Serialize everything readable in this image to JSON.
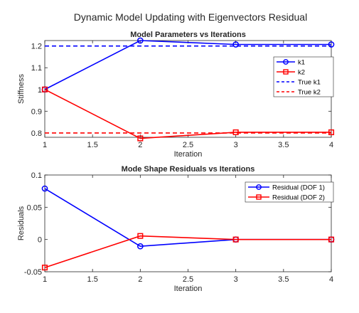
{
  "figure": {
    "suptitle": "Dynamic Model Updating with Eigenvectors Residual"
  },
  "chart_data": [
    {
      "type": "line",
      "title": "Model Parameters vs Iterations",
      "xlabel": "Iteration",
      "ylabel": "Stiffness",
      "xlim": [
        1,
        4
      ],
      "ylim": [
        0.78,
        1.225
      ],
      "xticks": [
        "1",
        "1.5",
        "2",
        "2.5",
        "3",
        "3.5",
        "4"
      ],
      "xtick_values": [
        1,
        1.5,
        2,
        2.5,
        3,
        3.5,
        4
      ],
      "yticks": [
        "0.8",
        "0.9",
        "1",
        "1.1",
        "1.2"
      ],
      "ytick_values": [
        0.8,
        0.9,
        1.0,
        1.1,
        1.2
      ],
      "grid": false,
      "legend_position": "top-right",
      "x": [
        1,
        2,
        3,
        4
      ],
      "series": [
        {
          "name": "k1",
          "values": [
            1.0,
            1.225,
            1.207,
            1.207
          ],
          "color": "#0000ff",
          "marker": "circle",
          "style": "solid"
        },
        {
          "name": "k2",
          "values": [
            1.0,
            0.775,
            0.803,
            0.803
          ],
          "color": "#ff0000",
          "marker": "square",
          "style": "solid"
        },
        {
          "name": "True k1",
          "values": [
            1.2,
            1.2,
            1.2,
            1.2
          ],
          "color": "#0000ff",
          "marker": "none",
          "style": "dashed"
        },
        {
          "name": "True k2",
          "values": [
            0.8,
            0.8,
            0.8,
            0.8
          ],
          "color": "#ff0000",
          "marker": "none",
          "style": "dashed"
        }
      ]
    },
    {
      "type": "line",
      "title": "Mode Shape Residuals vs Iterations",
      "xlabel": "Iteration",
      "ylabel": "Residuals",
      "xlim": [
        1,
        4
      ],
      "ylim": [
        -0.05,
        0.1
      ],
      "xticks": [
        "1",
        "1.5",
        "2",
        "2.5",
        "3",
        "3.5",
        "4"
      ],
      "xtick_values": [
        1,
        1.5,
        2,
        2.5,
        3,
        3.5,
        4
      ],
      "yticks": [
        "-0.05",
        "0",
        "0.05",
        "0.1"
      ],
      "ytick_values": [
        -0.05,
        0,
        0.05,
        0.1
      ],
      "grid": false,
      "legend_position": "top-right",
      "x": [
        1,
        2,
        3,
        4
      ],
      "series": [
        {
          "name": "Residual (DOF 1)",
          "values": [
            0.079,
            -0.0105,
            0.0,
            0.0
          ],
          "color": "#0000ff",
          "marker": "circle",
          "style": "solid"
        },
        {
          "name": "Residual (DOF 2)",
          "values": [
            -0.0435,
            0.0055,
            0.0,
            0.0
          ],
          "color": "#ff0000",
          "marker": "square",
          "style": "solid"
        }
      ]
    }
  ]
}
